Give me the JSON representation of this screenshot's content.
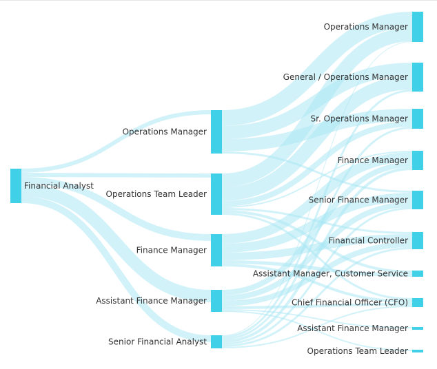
{
  "colors": {
    "node": "#40d0e8",
    "link": "#a6e6f3"
  },
  "chart_data": {
    "type": "sankey",
    "columns": [
      [
        "Financial Analyst"
      ],
      [
        "Operations Manager",
        "Operations Team Leader",
        "Finance Manager",
        "Assistant Finance Manager",
        "Senior Financial Analyst"
      ],
      [
        "Operations Manager",
        "General / Operations Manager",
        "Sr. Operations Manager",
        "Finance Manager",
        "Senior Finance Manager",
        "Financial Controller",
        "Assistant Manager, Customer Service",
        "Chief Financial Officer (CFO)",
        "Assistant Finance Manager",
        "Operations Team Leader"
      ]
    ],
    "links": [
      {
        "from": "0-0",
        "to": "1-0",
        "value": 6
      },
      {
        "from": "0-0",
        "to": "1-1",
        "value": 6
      },
      {
        "from": "0-0",
        "to": "1-2",
        "value": 10
      },
      {
        "from": "0-0",
        "to": "1-3",
        "value": 18
      },
      {
        "from": "0-0",
        "to": "1-4",
        "value": 10
      },
      {
        "from": "1-0",
        "to": "2-0",
        "value": 23
      },
      {
        "from": "1-0",
        "to": "2-1",
        "value": 19
      },
      {
        "from": "1-0",
        "to": "2-2",
        "value": 18
      },
      {
        "from": "1-0",
        "to": "2-4",
        "value": 3
      },
      {
        "from": "1-1",
        "to": "2-0",
        "value": 20
      },
      {
        "from": "1-1",
        "to": "2-1",
        "value": 20
      },
      {
        "from": "1-1",
        "to": "2-2",
        "value": 8
      },
      {
        "from": "1-1",
        "to": "2-3",
        "value": 2
      },
      {
        "from": "1-1",
        "to": "2-5",
        "value": 3
      },
      {
        "from": "1-1",
        "to": "2-6",
        "value": 4
      },
      {
        "from": "1-1",
        "to": "2-7",
        "value": 3
      },
      {
        "from": "1-2",
        "to": "2-3",
        "value": 14
      },
      {
        "from": "1-2",
        "to": "2-4",
        "value": 13
      },
      {
        "from": "1-2",
        "to": "2-5",
        "value": 11
      },
      {
        "from": "1-2",
        "to": "2-6",
        "value": 5
      },
      {
        "from": "1-2",
        "to": "2-7",
        "value": 4
      },
      {
        "from": "1-3",
        "to": "2-3",
        "value": 8
      },
      {
        "from": "1-3",
        "to": "2-4",
        "value": 8
      },
      {
        "from": "1-3",
        "to": "2-5",
        "value": 8
      },
      {
        "from": "1-3",
        "to": "2-7",
        "value": 4
      },
      {
        "from": "1-3",
        "to": "2-8",
        "value": 2
      },
      {
        "from": "1-3",
        "to": "2-9",
        "value": 2
      },
      {
        "from": "1-4",
        "to": "2-0",
        "value": 1
      },
      {
        "from": "1-4",
        "to": "2-1",
        "value": 3
      },
      {
        "from": "1-4",
        "to": "2-2",
        "value": 3
      },
      {
        "from": "1-4",
        "to": "2-3",
        "value": 4
      },
      {
        "from": "1-4",
        "to": "2-4",
        "value": 3
      },
      {
        "from": "1-4",
        "to": "2-5",
        "value": 3
      },
      {
        "from": "1-4",
        "to": "2-7",
        "value": 2
      }
    ]
  }
}
